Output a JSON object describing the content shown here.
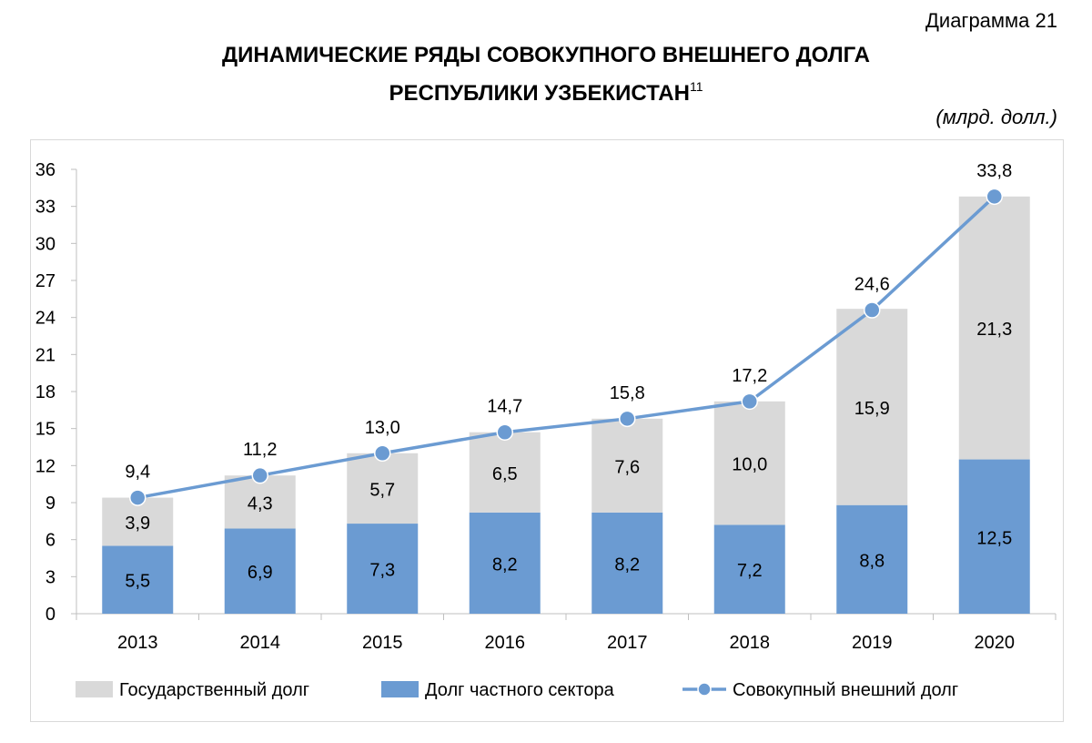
{
  "header": {
    "diagram_number": "Диаграмма 21",
    "title_line1": "ДИНАМИЧЕСКИЕ РЯДЫ СОВОКУПНОГО ВНЕШНЕГО ДОЛГА",
    "title_line2": "РЕСПУБЛИКИ УЗБЕКИСТАН",
    "footnote_mark": "11",
    "units": "(млрд. долл.)"
  },
  "colors": {
    "government": "#d9d9d9",
    "private": "#6b9bd2",
    "total_line": "#6b9bd2",
    "marker_stroke": "#ffffff"
  },
  "chart_data": {
    "type": "bar",
    "stacked": true,
    "categories": [
      "2013",
      "2014",
      "2015",
      "2016",
      "2017",
      "2018",
      "2019",
      "2020"
    ],
    "series": [
      {
        "name": "Долг частного сектора",
        "type": "bar",
        "values": [
          5.5,
          6.9,
          7.3,
          8.2,
          8.2,
          7.2,
          8.8,
          12.5
        ],
        "labels": [
          "5,5",
          "6,9",
          "7,3",
          "8,2",
          "8,2",
          "7,2",
          "8,8",
          "12,5"
        ]
      },
      {
        "name": "Государственный долг",
        "type": "bar",
        "values": [
          3.9,
          4.3,
          5.7,
          6.5,
          7.6,
          10.0,
          15.9,
          21.3
        ],
        "labels": [
          "3,9",
          "4,3",
          "5,7",
          "6,5",
          "7,6",
          "10,0",
          "15,9",
          "21,3"
        ]
      },
      {
        "name": "Совокупный внешний долг",
        "type": "line",
        "values": [
          9.4,
          11.2,
          13.0,
          14.7,
          15.8,
          17.2,
          24.6,
          33.8
        ],
        "labels": [
          "9,4",
          "11,2",
          "13,0",
          "14,7",
          "15,8",
          "17,2",
          "24,6",
          "33,8"
        ]
      }
    ],
    "ylim": [
      0,
      36
    ],
    "yticks": [
      0,
      3,
      6,
      9,
      12,
      15,
      18,
      21,
      24,
      27,
      30,
      33,
      36
    ],
    "grid": false,
    "legend_position": "bottom",
    "legend": [
      {
        "name": "Государственный долг",
        "kind": "bar-government"
      },
      {
        "name": "Долг частного сектора",
        "kind": "bar-private"
      },
      {
        "name": "Совокупный внешний долг",
        "kind": "line"
      }
    ]
  }
}
